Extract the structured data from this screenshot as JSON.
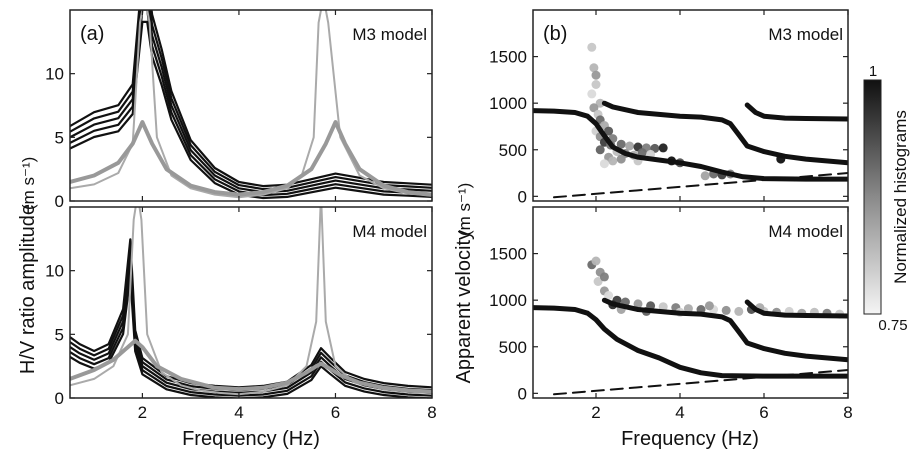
{
  "figure": {
    "colorbar": {
      "label": "Normalized histograms",
      "max_label": "1",
      "min_label": "0.75"
    }
  },
  "chart_data": [
    {
      "type": "line",
      "panel": "(a)",
      "subtitle": "M3 model",
      "xlabel": "Frequency (Hz)",
      "ylabel": "H/V ratio amplitude",
      "ylabel_unit": "(m s⁻¹)",
      "xlim": [
        0.5,
        8
      ],
      "ylim": [
        0,
        15
      ],
      "xticks": [
        2,
        4,
        6,
        8
      ],
      "yticks": [
        0,
        5,
        10
      ],
      "series": [
        {
          "color": "#111111",
          "style": "observed-ensemble",
          "x": [
            0.5,
            1.0,
            1.5,
            1.8,
            2.0,
            2.1,
            2.2,
            2.4,
            2.6,
            3.0,
            3.5,
            4.0,
            4.5,
            5.0,
            5.5,
            6.0,
            6.5,
            7.0,
            7.5,
            8.0
          ],
          "y": [
            5.0,
            6.0,
            6.5,
            8.0,
            16.0,
            16.0,
            13.0,
            10.5,
            7.5,
            4.0,
            2.0,
            1.0,
            0.7,
            0.8,
            1.2,
            1.6,
            1.3,
            1.0,
            0.9,
            0.8
          ]
        },
        {
          "color": "#aaaaaa",
          "style": "theoretical-thin",
          "x": [
            0.5,
            1.0,
            1.5,
            1.8,
            1.95,
            2.05,
            2.15,
            2.3,
            2.6,
            3.0,
            3.5,
            4.0,
            4.5,
            5.0,
            5.3,
            5.55,
            5.65,
            5.75,
            5.85,
            6.1,
            6.5,
            7.0,
            7.5,
            8.0
          ],
          "y": [
            1.0,
            1.3,
            2.2,
            4.5,
            14.0,
            16.0,
            14.0,
            5.0,
            2.0,
            1.0,
            0.5,
            0.3,
            0.5,
            1.0,
            2.0,
            5.0,
            14.0,
            16.0,
            14.0,
            5.0,
            2.0,
            1.0,
            0.6,
            0.4
          ]
        },
        {
          "color": "#999999",
          "style": "theoretical-thick",
          "x": [
            0.5,
            1.0,
            1.5,
            1.8,
            2.0,
            2.2,
            2.5,
            3.0,
            3.5,
            4.0,
            4.5,
            5.0,
            5.5,
            5.8,
            6.0,
            6.2,
            6.5,
            7.0,
            7.5,
            8.0
          ],
          "y": [
            1.5,
            2.0,
            3.0,
            4.5,
            6.2,
            4.5,
            2.5,
            1.2,
            0.7,
            0.5,
            0.7,
            1.2,
            2.5,
            4.5,
            6.2,
            4.5,
            2.5,
            1.2,
            0.7,
            0.5
          ]
        }
      ]
    },
    {
      "type": "line",
      "panel": "",
      "subtitle": "M4 model",
      "xlabel": "Frequency (Hz)",
      "ylabel": "",
      "xlim": [
        0.5,
        8
      ],
      "ylim": [
        0,
        15
      ],
      "xticks": [
        2,
        4,
        6,
        8
      ],
      "yticks": [
        0,
        5,
        10
      ],
      "series": [
        {
          "color": "#111111",
          "style": "observed-ensemble",
          "x": [
            0.5,
            0.7,
            1.0,
            1.3,
            1.6,
            1.75,
            1.85,
            2.0,
            2.5,
            3.0,
            3.5,
            4.0,
            4.5,
            5.0,
            5.5,
            5.7,
            5.9,
            6.2,
            6.6,
            7.0,
            7.5,
            8.0
          ],
          "y": [
            4.0,
            3.5,
            3.0,
            3.5,
            6.0,
            11.0,
            4.5,
            2.5,
            1.2,
            0.7,
            0.5,
            0.4,
            0.5,
            0.8,
            2.0,
            3.2,
            2.5,
            1.5,
            1.0,
            0.7,
            0.5,
            0.4
          ]
        },
        {
          "color": "#aaaaaa",
          "style": "theoretical-thin",
          "x": [
            0.5,
            1.0,
            1.4,
            1.7,
            1.82,
            1.9,
            1.98,
            2.1,
            2.4,
            2.8,
            3.2,
            3.6,
            4.0,
            4.5,
            5.0,
            5.4,
            5.6,
            5.7,
            5.8,
            6.0,
            6.4,
            7.0,
            7.5,
            8.0
          ],
          "y": [
            1.0,
            1.5,
            2.5,
            5.0,
            14.0,
            16.0,
            14.0,
            5.0,
            2.0,
            1.0,
            0.6,
            0.4,
            0.3,
            0.5,
            1.0,
            2.5,
            6.0,
            16.0,
            6.0,
            2.5,
            1.2,
            0.7,
            0.5,
            0.4
          ]
        },
        {
          "color": "#999999",
          "style": "theoretical-thick",
          "x": [
            0.5,
            1.0,
            1.4,
            1.7,
            1.85,
            2.0,
            2.3,
            2.8,
            3.5,
            4.0,
            4.5,
            5.0,
            5.4,
            5.6,
            5.7,
            5.8,
            6.1,
            6.5,
            7.0,
            7.5,
            8.0
          ],
          "y": [
            1.5,
            2.2,
            3.0,
            4.0,
            4.5,
            4.0,
            2.5,
            1.5,
            0.8,
            0.7,
            0.8,
            1.2,
            2.0,
            2.5,
            2.7,
            2.5,
            1.8,
            1.2,
            0.8,
            0.6,
            0.5
          ]
        }
      ]
    },
    {
      "type": "scatter",
      "panel": "(b)",
      "subtitle": "M3 model",
      "xlabel": "Frequency (Hz)",
      "ylabel": "Apparent velocity",
      "ylabel_unit": "(m s⁻¹)",
      "xlim": [
        0.5,
        8
      ],
      "ylim": [
        -50,
        2000
      ],
      "xticks": [
        2,
        4,
        6,
        8
      ],
      "yticks": [
        0,
        500,
        1000,
        1500
      ],
      "curves": [
        {
          "name": "mode-0",
          "x": [
            0.5,
            1.0,
            1.5,
            1.8,
            2.0,
            2.2,
            2.4,
            2.7,
            3.0,
            3.5,
            4.0,
            4.5,
            5.0,
            5.5,
            6.0,
            7.0,
            8.0
          ],
          "y": [
            920,
            915,
            900,
            860,
            780,
            650,
            530,
            460,
            420,
            390,
            360,
            320,
            260,
            210,
            190,
            185,
            185
          ]
        },
        {
          "name": "mode-1",
          "x": [
            2.2,
            2.4,
            3.0,
            4.0,
            4.5,
            5.0,
            5.2,
            5.4,
            5.6,
            6.0,
            6.5,
            7.0,
            8.0
          ],
          "y": [
            1000,
            960,
            900,
            860,
            850,
            820,
            780,
            660,
            540,
            480,
            430,
            400,
            360
          ]
        },
        {
          "name": "mode-2",
          "x": [
            5.6,
            5.8,
            6.0,
            6.5,
            7.0,
            8.0
          ],
          "y": [
            980,
            900,
            860,
            840,
            835,
            830
          ]
        },
        {
          "name": "dashed-reference",
          "style": "dashed",
          "x": [
            1.0,
            8.0
          ],
          "y": [
            -10,
            250
          ]
        }
      ],
      "points": [
        {
          "x": 1.9,
          "y": 1600,
          "v": 0.8
        },
        {
          "x": 1.95,
          "y": 1380,
          "v": 0.82
        },
        {
          "x": 2.0,
          "y": 1300,
          "v": 0.85
        },
        {
          "x": 2.0,
          "y": 1200,
          "v": 0.8
        },
        {
          "x": 1.9,
          "y": 1100,
          "v": 0.78
        },
        {
          "x": 2.1,
          "y": 1000,
          "v": 0.82
        },
        {
          "x": 1.95,
          "y": 950,
          "v": 0.85
        },
        {
          "x": 2.05,
          "y": 880,
          "v": 0.8
        },
        {
          "x": 2.1,
          "y": 820,
          "v": 0.9
        },
        {
          "x": 2.2,
          "y": 760,
          "v": 0.83
        },
        {
          "x": 2.0,
          "y": 700,
          "v": 0.79
        },
        {
          "x": 2.3,
          "y": 700,
          "v": 0.92
        },
        {
          "x": 2.1,
          "y": 640,
          "v": 0.86
        },
        {
          "x": 2.4,
          "y": 620,
          "v": 0.88
        },
        {
          "x": 2.2,
          "y": 580,
          "v": 0.95
        },
        {
          "x": 2.6,
          "y": 560,
          "v": 0.9
        },
        {
          "x": 2.8,
          "y": 540,
          "v": 0.84
        },
        {
          "x": 3.0,
          "y": 530,
          "v": 0.96
        },
        {
          "x": 3.2,
          "y": 520,
          "v": 0.88
        },
        {
          "x": 3.4,
          "y": 515,
          "v": 0.92
        },
        {
          "x": 3.6,
          "y": 520,
          "v": 0.98
        },
        {
          "x": 2.5,
          "y": 480,
          "v": 0.81
        },
        {
          "x": 2.7,
          "y": 460,
          "v": 0.87
        },
        {
          "x": 2.9,
          "y": 440,
          "v": 0.83
        },
        {
          "x": 3.1,
          "y": 470,
          "v": 0.9
        },
        {
          "x": 3.3,
          "y": 450,
          "v": 0.79
        },
        {
          "x": 2.3,
          "y": 420,
          "v": 0.85
        },
        {
          "x": 2.4,
          "y": 380,
          "v": 0.82
        },
        {
          "x": 2.2,
          "y": 350,
          "v": 0.78
        },
        {
          "x": 2.6,
          "y": 400,
          "v": 0.86
        },
        {
          "x": 3.8,
          "y": 380,
          "v": 1.0
        },
        {
          "x": 4.0,
          "y": 360,
          "v": 0.93
        },
        {
          "x": 3.0,
          "y": 380,
          "v": 0.8
        },
        {
          "x": 4.8,
          "y": 240,
          "v": 0.9
        },
        {
          "x": 5.0,
          "y": 230,
          "v": 0.95
        },
        {
          "x": 5.2,
          "y": 240,
          "v": 0.88
        },
        {
          "x": 4.6,
          "y": 220,
          "v": 0.84
        },
        {
          "x": 6.4,
          "y": 400,
          "v": 1.0
        },
        {
          "x": 2.1,
          "y": 500,
          "v": 0.91
        },
        {
          "x": 2.35,
          "y": 550,
          "v": 0.89
        }
      ]
    },
    {
      "type": "scatter",
      "panel": "",
      "subtitle": "M4 model",
      "xlabel": "Frequency (Hz)",
      "ylabel": "",
      "xlim": [
        0.5,
        8
      ],
      "ylim": [
        -50,
        2000
      ],
      "xticks": [
        2,
        4,
        6,
        8
      ],
      "yticks": [
        0,
        500,
        1000,
        1500
      ],
      "curves": [
        {
          "name": "mode-0",
          "x": [
            0.5,
            1.0,
            1.5,
            1.8,
            2.0,
            2.2,
            2.5,
            3.0,
            3.5,
            4.0,
            4.5,
            5.0,
            6.0,
            7.0,
            8.0
          ],
          "y": [
            920,
            915,
            900,
            860,
            790,
            690,
            580,
            460,
            380,
            280,
            220,
            190,
            185,
            185,
            185
          ]
        },
        {
          "name": "mode-1",
          "x": [
            2.2,
            2.4,
            3.0,
            4.0,
            4.5,
            5.0,
            5.2,
            5.4,
            5.6,
            6.0,
            6.5,
            7.0,
            8.0
          ],
          "y": [
            1000,
            960,
            900,
            860,
            850,
            820,
            780,
            660,
            540,
            480,
            430,
            400,
            360
          ]
        },
        {
          "name": "mode-2",
          "x": [
            5.6,
            5.8,
            6.0,
            6.5,
            7.0,
            8.0
          ],
          "y": [
            980,
            900,
            860,
            840,
            835,
            830
          ]
        },
        {
          "name": "dashed-reference",
          "style": "dashed",
          "x": [
            1.0,
            8.0
          ],
          "y": [
            -10,
            250
          ]
        }
      ],
      "points": [
        {
          "x": 1.9,
          "y": 1380,
          "v": 0.9
        },
        {
          "x": 2.0,
          "y": 1420,
          "v": 0.82
        },
        {
          "x": 2.1,
          "y": 1300,
          "v": 0.86
        },
        {
          "x": 2.05,
          "y": 1200,
          "v": 0.8
        },
        {
          "x": 2.2,
          "y": 1100,
          "v": 0.85
        },
        {
          "x": 2.3,
          "y": 1050,
          "v": 0.78
        },
        {
          "x": 2.5,
          "y": 1000,
          "v": 0.95
        },
        {
          "x": 2.7,
          "y": 980,
          "v": 0.9
        },
        {
          "x": 3.0,
          "y": 960,
          "v": 0.85
        },
        {
          "x": 3.3,
          "y": 940,
          "v": 0.92
        },
        {
          "x": 3.6,
          "y": 930,
          "v": 0.8
        },
        {
          "x": 3.9,
          "y": 920,
          "v": 0.88
        },
        {
          "x": 4.2,
          "y": 910,
          "v": 0.83
        },
        {
          "x": 4.5,
          "y": 900,
          "v": 0.9
        },
        {
          "x": 4.8,
          "y": 900,
          "v": 0.78
        },
        {
          "x": 5.1,
          "y": 890,
          "v": 0.86
        },
        {
          "x": 5.4,
          "y": 880,
          "v": 0.82
        },
        {
          "x": 5.7,
          "y": 900,
          "v": 0.93
        },
        {
          "x": 6.0,
          "y": 880,
          "v": 0.8
        },
        {
          "x": 6.3,
          "y": 870,
          "v": 0.86
        },
        {
          "x": 6.6,
          "y": 880,
          "v": 0.79
        },
        {
          "x": 6.9,
          "y": 860,
          "v": 0.84
        },
        {
          "x": 7.2,
          "y": 870,
          "v": 0.81
        },
        {
          "x": 7.5,
          "y": 860,
          "v": 0.88
        },
        {
          "x": 7.8,
          "y": 850,
          "v": 0.8
        },
        {
          "x": 2.6,
          "y": 900,
          "v": 0.84
        },
        {
          "x": 3.2,
          "y": 880,
          "v": 0.91
        },
        {
          "x": 4.0,
          "y": 870,
          "v": 0.79
        },
        {
          "x": 2.2,
          "y": 1250,
          "v": 0.88
        },
        {
          "x": 2.4,
          "y": 950,
          "v": 0.97
        },
        {
          "x": 4.7,
          "y": 940,
          "v": 0.85
        },
        {
          "x": 5.9,
          "y": 920,
          "v": 0.83
        }
      ]
    }
  ]
}
